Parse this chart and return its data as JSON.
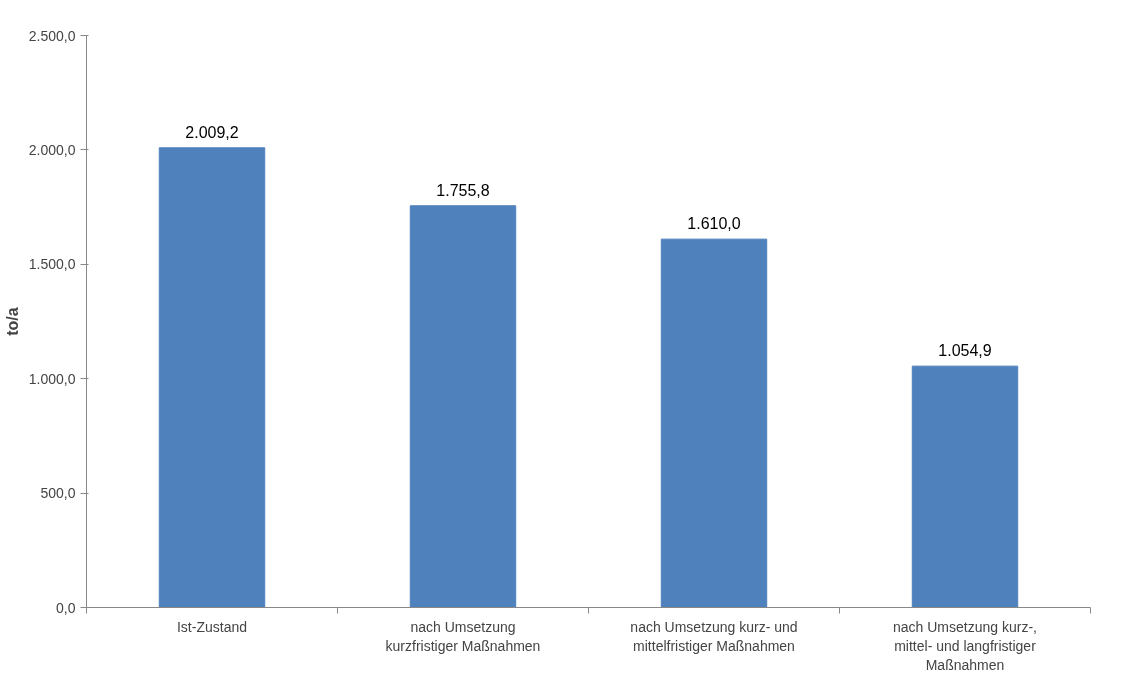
{
  "chart_data": {
    "type": "bar",
    "ylabel": "to/a",
    "categories": [
      "Ist-Zustand",
      "nach Umsetzung\nkurzfristiger Maßnahmen",
      "nach Umsetzung kurz- und\nmittelfristiger Maßnahmen",
      "nach Umsetzung kurz-,\nmittel- und langfristiger\nMaßnahmen"
    ],
    "values": [
      2009.2,
      1755.8,
      1610.0,
      1054.9
    ],
    "value_labels": [
      "2.009,2",
      "1.755,8",
      "1.610,0",
      "1.054,9"
    ],
    "color": "#4f81bd",
    "ylim": [
      0,
      2500
    ],
    "yticks": [
      {
        "value": 0,
        "label": "0,0"
      },
      {
        "value": 500,
        "label": "500,0"
      },
      {
        "value": 1000,
        "label": "1.000,0"
      },
      {
        "value": 1500,
        "label": "1.500,0"
      },
      {
        "value": 2000,
        "label": "2.000,0"
      },
      {
        "value": 2500,
        "label": "2.500,0"
      }
    ],
    "grid": false
  }
}
